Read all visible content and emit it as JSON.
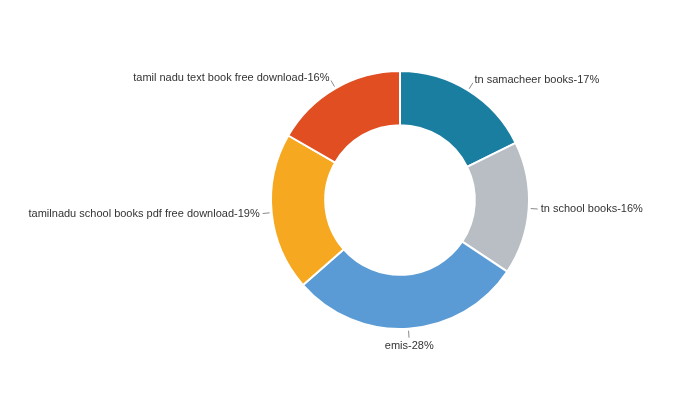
{
  "chart_data": {
    "type": "doughnut",
    "categories": [
      "tn samacheer books-17%",
      "tn school books-16%",
      "emis-28%",
      "tamilnadu school books pdf free download-19%",
      "tamil nadu text book free download-16%"
    ],
    "values": [
      17,
      16,
      28,
      19,
      16
    ],
    "colors": [
      "#1a7ea0",
      "#b8bec4",
      "#5b9bd5",
      "#f5a820",
      "#e04e22"
    ]
  }
}
